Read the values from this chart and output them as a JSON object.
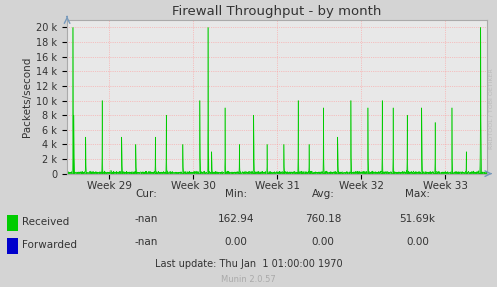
{
  "title": "Firewall Throughput - by month",
  "ylabel": "Packets/second",
  "background_color": "#d4d4d4",
  "plot_bg_color": "#e8e8e8",
  "grid_color": "#ff9999",
  "ytick_labels": [
    "0",
    "2 k",
    "4 k",
    "6 k",
    "8 k",
    "10 k",
    "12 k",
    "14 k",
    "16 k",
    "18 k",
    "20 k"
  ],
  "ytick_values": [
    0,
    2000,
    4000,
    6000,
    8000,
    10000,
    12000,
    14000,
    16000,
    18000,
    20000
  ],
  "ymax": 21000,
  "xtick_labels": [
    "Week 29",
    "Week 30",
    "Week 31",
    "Week 32",
    "Week 33"
  ],
  "line_color_received": "#00cc00",
  "line_color_forwarded": "#0000cc",
  "legend_received": "Received",
  "legend_forwarded": "Forwarded",
  "stats_cur_received": "-nan",
  "stats_cur_forwarded": "-nan",
  "stats_min_received": "162.94",
  "stats_min_forwarded": "0.00",
  "stats_avg_received": "760.18",
  "stats_avg_forwarded": "0.00",
  "stats_max_received": "51.69k",
  "stats_max_forwarded": "0.00",
  "last_update": "Last update: Thu Jan  1 01:00:00 1970",
  "munin_version": "Munin 2.0.57",
  "watermark": "RRDTOOL / TOBI OETIKER"
}
